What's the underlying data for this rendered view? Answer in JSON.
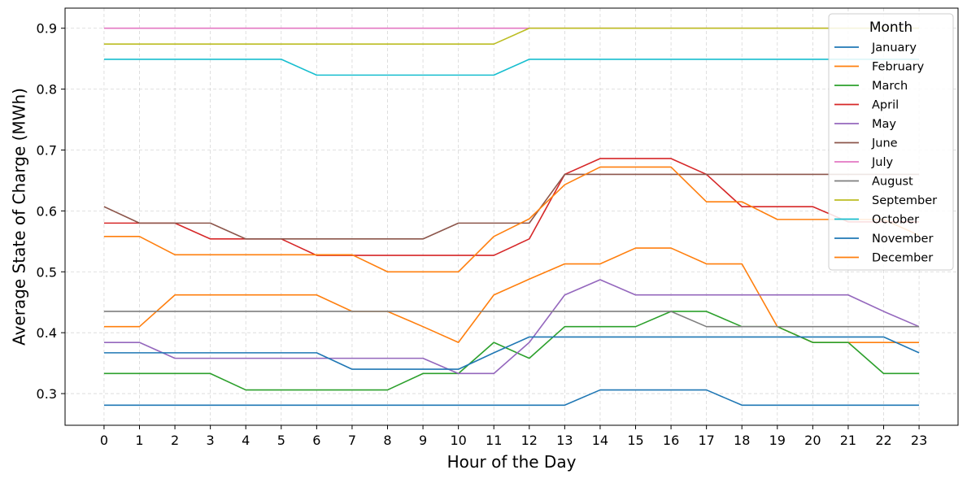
{
  "chart_data": {
    "type": "line",
    "xlabel": "Hour of the Day",
    "ylabel": "Average State of Charge (MWh)",
    "x": [
      0,
      1,
      2,
      3,
      4,
      5,
      6,
      7,
      8,
      9,
      10,
      11,
      12,
      13,
      14,
      15,
      16,
      17,
      18,
      19,
      20,
      21,
      22,
      23
    ],
    "xlim": [
      -1.1,
      24.1
    ],
    "ylim": [
      0.248,
      0.933
    ],
    "yticks": [
      0.3,
      0.4,
      0.5,
      0.6,
      0.7,
      0.8,
      0.9
    ],
    "ytick_labels": [
      "0.3",
      "0.4",
      "0.5",
      "0.6",
      "0.7",
      "0.8",
      "0.9"
    ],
    "grid": true,
    "legend": {
      "title": "Month",
      "position": "top-right"
    },
    "series": [
      {
        "name": "January",
        "color": "#1f77b4",
        "values": [
          0.281,
          0.281,
          0.281,
          0.281,
          0.281,
          0.281,
          0.281,
          0.281,
          0.281,
          0.281,
          0.281,
          0.281,
          0.281,
          0.281,
          0.306,
          0.306,
          0.306,
          0.306,
          0.281,
          0.281,
          0.281,
          0.281,
          0.281,
          0.281
        ]
      },
      {
        "name": "February",
        "color": "#ff7f0e",
        "values": [
          0.41,
          0.41,
          0.462,
          0.462,
          0.462,
          0.462,
          0.462,
          0.435,
          0.435,
          0.41,
          0.384,
          0.462,
          0.488,
          0.513,
          0.513,
          0.539,
          0.539,
          0.513,
          0.513,
          0.41,
          0.384,
          0.384,
          0.384,
          0.384
        ]
      },
      {
        "name": "March",
        "color": "#2ca02c",
        "values": [
          0.333,
          0.333,
          0.333,
          0.333,
          0.306,
          0.306,
          0.306,
          0.306,
          0.306,
          0.333,
          0.333,
          0.384,
          0.358,
          0.41,
          0.41,
          0.41,
          0.435,
          0.435,
          0.41,
          0.41,
          0.384,
          0.384,
          0.333,
          0.333
        ]
      },
      {
        "name": "April",
        "color": "#d62728",
        "values": [
          0.58,
          0.58,
          0.58,
          0.554,
          0.554,
          0.554,
          0.527,
          0.527,
          0.527,
          0.527,
          0.527,
          0.527,
          0.554,
          0.66,
          0.686,
          0.686,
          0.686,
          0.66,
          0.607,
          0.607,
          0.607,
          0.582,
          0.582,
          0.582
        ]
      },
      {
        "name": "May",
        "color": "#9467bd",
        "values": [
          0.384,
          0.384,
          0.358,
          0.358,
          0.358,
          0.358,
          0.358,
          0.358,
          0.358,
          0.358,
          0.333,
          0.333,
          0.384,
          0.462,
          0.487,
          0.462,
          0.462,
          0.462,
          0.462,
          0.462,
          0.462,
          0.462,
          0.435,
          0.41
        ]
      },
      {
        "name": "June",
        "color": "#8c564b",
        "values": [
          0.607,
          0.58,
          0.58,
          0.58,
          0.554,
          0.554,
          0.554,
          0.554,
          0.554,
          0.554,
          0.58,
          0.58,
          0.58,
          0.66,
          0.66,
          0.66,
          0.66,
          0.66,
          0.66,
          0.66,
          0.66,
          0.66,
          0.66,
          0.66
        ]
      },
      {
        "name": "July",
        "color": "#e377c2",
        "values": [
          0.9,
          0.9,
          0.9,
          0.9,
          0.9,
          0.9,
          0.9,
          0.9,
          0.9,
          0.9,
          0.9,
          0.9,
          0.9,
          0.9,
          0.9,
          0.9,
          0.9,
          0.9,
          0.9,
          0.9,
          0.9,
          0.9,
          0.9,
          0.9
        ]
      },
      {
        "name": "August",
        "color": "#7f7f7f",
        "values": [
          0.435,
          0.435,
          0.435,
          0.435,
          0.435,
          0.435,
          0.435,
          0.435,
          0.435,
          0.435,
          0.435,
          0.435,
          0.435,
          0.435,
          0.435,
          0.435,
          0.435,
          0.41,
          0.41,
          0.41,
          0.41,
          0.41,
          0.41,
          0.41
        ]
      },
      {
        "name": "September",
        "color": "#bcbd22",
        "values": [
          0.874,
          0.874,
          0.874,
          0.874,
          0.874,
          0.874,
          0.874,
          0.874,
          0.874,
          0.874,
          0.874,
          0.874,
          0.9,
          0.9,
          0.9,
          0.9,
          0.9,
          0.9,
          0.9,
          0.9,
          0.9,
          0.9,
          0.9,
          0.9
        ]
      },
      {
        "name": "October",
        "color": "#17becf",
        "values": [
          0.849,
          0.849,
          0.849,
          0.849,
          0.849,
          0.849,
          0.823,
          0.823,
          0.823,
          0.823,
          0.823,
          0.823,
          0.849,
          0.849,
          0.849,
          0.849,
          0.849,
          0.849,
          0.849,
          0.849,
          0.849,
          0.849,
          0.849,
          0.849
        ]
      },
      {
        "name": "November",
        "color": "#1f77b4",
        "values": [
          0.367,
          0.367,
          0.367,
          0.367,
          0.367,
          0.367,
          0.367,
          0.34,
          0.34,
          0.34,
          0.34,
          0.367,
          0.393,
          0.393,
          0.393,
          0.393,
          0.393,
          0.393,
          0.393,
          0.393,
          0.393,
          0.393,
          0.393,
          0.367
        ]
      },
      {
        "name": "December",
        "color": "#ff7f0e",
        "values": [
          0.558,
          0.558,
          0.528,
          0.528,
          0.528,
          0.528,
          0.528,
          0.528,
          0.5,
          0.5,
          0.5,
          0.558,
          0.587,
          0.643,
          0.672,
          0.672,
          0.672,
          0.615,
          0.615,
          0.586,
          0.586,
          0.586,
          0.586,
          0.56
        ]
      }
    ]
  }
}
